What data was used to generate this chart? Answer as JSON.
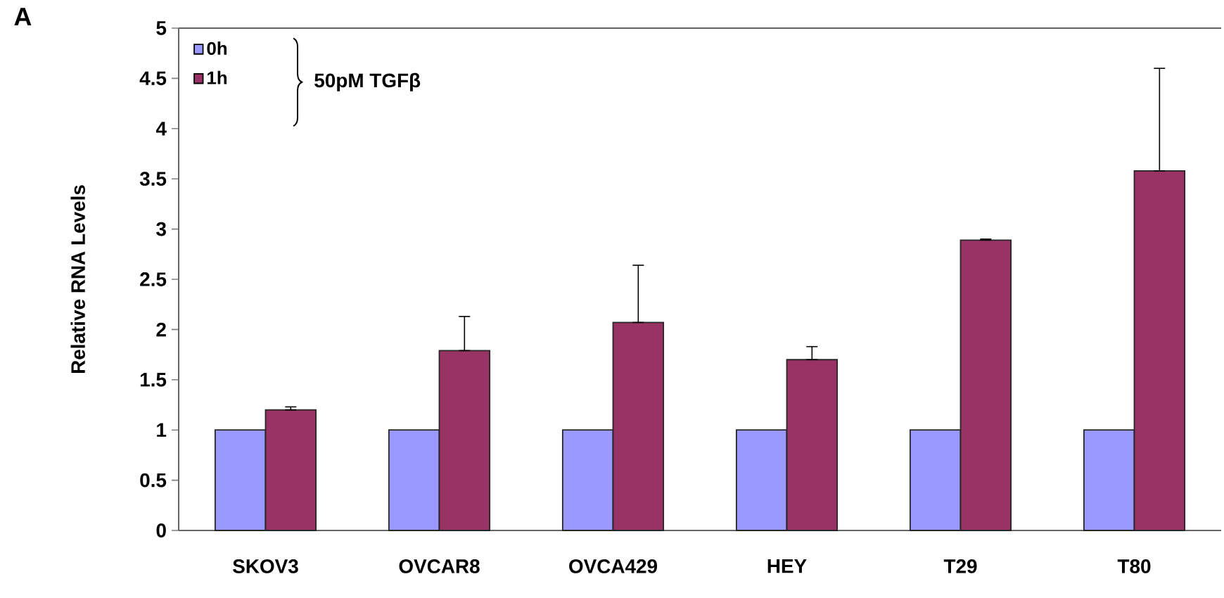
{
  "chart_data": {
    "type": "bar",
    "ylabel": "Relative RNA Levels",
    "annotations": [
      "A",
      "50pM TGFβ"
    ],
    "categories": [
      "SKOV3",
      "OVCAR8",
      "OVCA429",
      "HEY",
      "T29",
      "T80"
    ],
    "series": [
      {
        "name": "0h",
        "color": "#9999ff",
        "values": [
          1,
          1,
          1,
          1,
          1,
          1
        ]
      },
      {
        "name": "1h",
        "color": "#993366",
        "values": [
          1.2,
          1.79,
          2.07,
          1.7,
          2.89,
          3.58
        ],
        "errors": [
          [
            1.2,
            1.23
          ],
          [
            1.79,
            2.13
          ],
          [
            2.07,
            2.64
          ],
          [
            1.7,
            1.83
          ],
          [
            2.89,
            2.9
          ],
          [
            3.58,
            4.6
          ]
        ]
      }
    ],
    "ylim": [
      0,
      5
    ],
    "yticks": [
      0,
      0.5,
      1,
      1.5,
      2,
      2.5,
      3,
      3.5,
      4,
      4.5,
      5
    ],
    "legend": "top left"
  }
}
